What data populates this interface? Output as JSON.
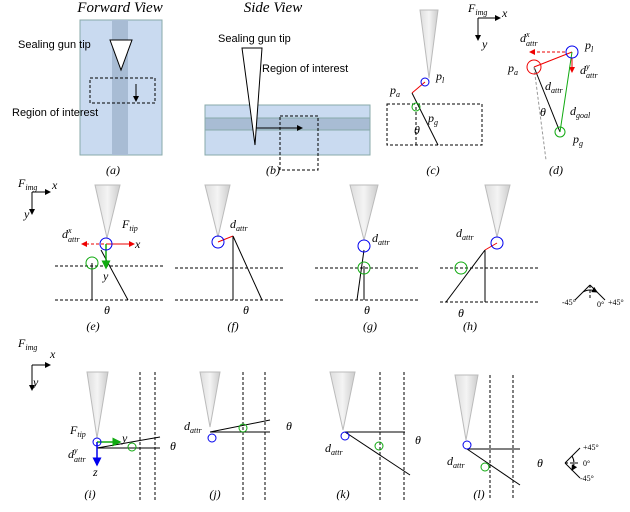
{
  "panels": {
    "a": {
      "title": "Forward View",
      "tip_label": "Sealing gun tip",
      "roi_label": "Region of interest",
      "caption": "(a)"
    },
    "b": {
      "title": "Side View",
      "tip_label": "Sealing gun tip",
      "roi_label": "Region of interest",
      "caption": "(b)"
    },
    "c": {
      "p_l": {
        "base": "p",
        "sub": "l"
      },
      "p_a": {
        "base": "p",
        "sub": "a"
      },
      "p_g": {
        "base": "p",
        "sub": "g"
      },
      "theta": "θ",
      "caption": "(c)"
    },
    "d": {
      "frame": {
        "base": "F",
        "sub": "img"
      },
      "x_axis": "x",
      "y_axis": "y",
      "d_attr_x": {
        "base": "d",
        "sub": "attr",
        "sup": "x"
      },
      "p_l": {
        "base": "p",
        "sub": "l"
      },
      "p_a": {
        "base": "p",
        "sub": "a"
      },
      "d_attr": {
        "base": "d",
        "sub": "attr"
      },
      "d_attr_y": {
        "base": "d",
        "sub": "attr",
        "sup": "y"
      },
      "d_goal": {
        "base": "d",
        "sub": "goal"
      },
      "theta": "θ",
      "p_g": {
        "base": "p",
        "sub": "g"
      },
      "caption": "(d)"
    },
    "row2": {
      "frame": {
        "base": "F",
        "sub": "img"
      },
      "x_axis": "x",
      "y_axis": "y"
    },
    "e": {
      "d_attr_x": {
        "base": "d",
        "sub": "attr",
        "sup": "x"
      },
      "frame_tip": {
        "base": "F",
        "sub": "tip"
      },
      "x_axis": "x",
      "y_axis": "y",
      "theta": "θ",
      "caption": "(e)"
    },
    "f": {
      "d_attr": {
        "base": "d",
        "sub": "attr"
      },
      "theta": "θ",
      "caption": "(f)"
    },
    "g": {
      "d_attr": {
        "base": "d",
        "sub": "attr"
      },
      "theta": "θ",
      "caption": "(g)"
    },
    "h": {
      "d_attr": {
        "base": "d",
        "sub": "attr"
      },
      "theta": "θ",
      "caption": "(h)"
    },
    "gauge2": {
      "minus": "-45°",
      "zero": "0°",
      "plus": "+45°"
    },
    "row3": {
      "frame": {
        "base": "F",
        "sub": "img"
      },
      "x_axis": "x",
      "y_axis": "y"
    },
    "i": {
      "frame_tip": {
        "base": "F",
        "sub": "tip"
      },
      "y_axis": "y",
      "d_attr_y": {
        "base": "d",
        "sub": "attr",
        "sup": "y"
      },
      "z_axis": "z",
      "theta": "θ",
      "caption": "(i)"
    },
    "j": {
      "d_attr": {
        "base": "d",
        "sub": "attr"
      },
      "theta": "θ",
      "caption": "(j)"
    },
    "k": {
      "d_attr": {
        "base": "d",
        "sub": "attr"
      },
      "theta": "θ",
      "caption": "(k)"
    },
    "l": {
      "d_attr": {
        "base": "d",
        "sub": "attr"
      },
      "theta": "θ",
      "caption": "(l)"
    },
    "gauge3": {
      "plus": "+45°",
      "zero": "0°",
      "minus": "-45°"
    }
  }
}
